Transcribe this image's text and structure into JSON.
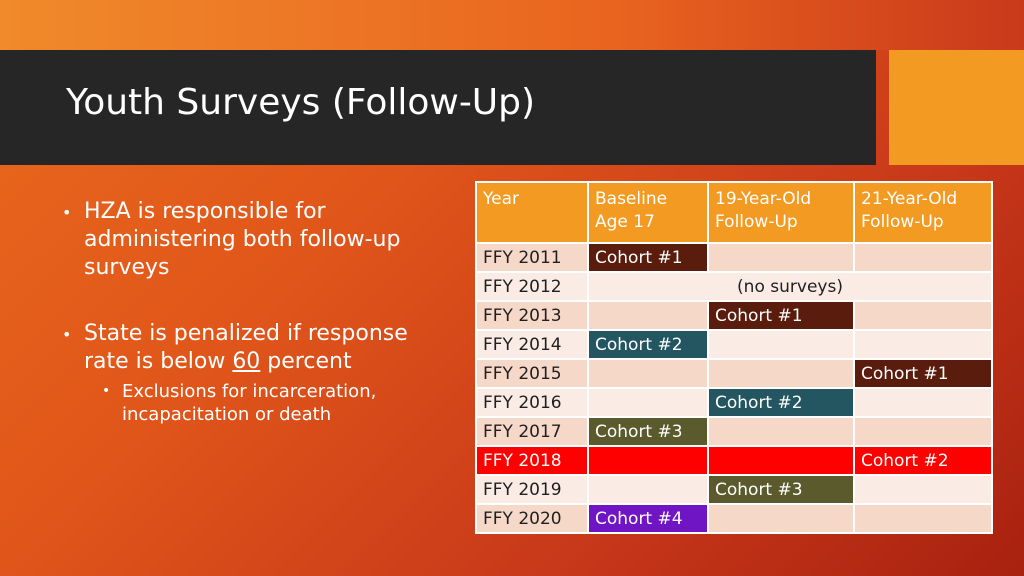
{
  "slide": {
    "title": "Youth Surveys (Follow-Up)"
  },
  "bullets": [
    {
      "text": "HZA is responsible for administering both follow-up surveys"
    },
    {
      "text_before": "State is penalized if response rate is below ",
      "text_underlined": "60",
      "text_after": " percent"
    }
  ],
  "sub_bullets": [
    {
      "text": "Exclusions for incarceration, incapacitation or death"
    }
  ],
  "table": {
    "headers": [
      "Year",
      "Baseline Age 17",
      "19-Year-Old Follow-Up",
      "21-Year-Old Follow-Up"
    ],
    "rows": [
      {
        "year": "FFY 2011",
        "baseline": "Cohort #1",
        "f19": "",
        "f21": ""
      },
      {
        "year": "FFY 2012",
        "note": "(no surveys)"
      },
      {
        "year": "FFY 2013",
        "baseline": "",
        "f19": "Cohort #1",
        "f21": ""
      },
      {
        "year": "FFY 2014",
        "baseline": "Cohort #2",
        "f19": "",
        "f21": ""
      },
      {
        "year": "FFY 2015",
        "baseline": "",
        "f19": "",
        "f21": "Cohort #1"
      },
      {
        "year": "FFY 2016",
        "baseline": "",
        "f19": "Cohort #2",
        "f21": ""
      },
      {
        "year": "FFY 2017",
        "baseline": "Cohort #3",
        "f19": "",
        "f21": ""
      },
      {
        "year": "FFY 2018",
        "baseline": "",
        "f19": "",
        "f21": "Cohort #2"
      },
      {
        "year": "FFY 2019",
        "baseline": "",
        "f19": "Cohort #3",
        "f21": ""
      },
      {
        "year": "FFY 2020",
        "baseline": "Cohort #4",
        "f19": "",
        "f21": ""
      }
    ]
  },
  "colors": {
    "header_orange": "#f29a22",
    "title_bar": "#262626",
    "cohort1": "#5a1d0d",
    "cohort2": "#235661",
    "cohort3": "#5a5a2d",
    "cohort4": "#7015c3",
    "highlight_row": "#ff0000"
  }
}
